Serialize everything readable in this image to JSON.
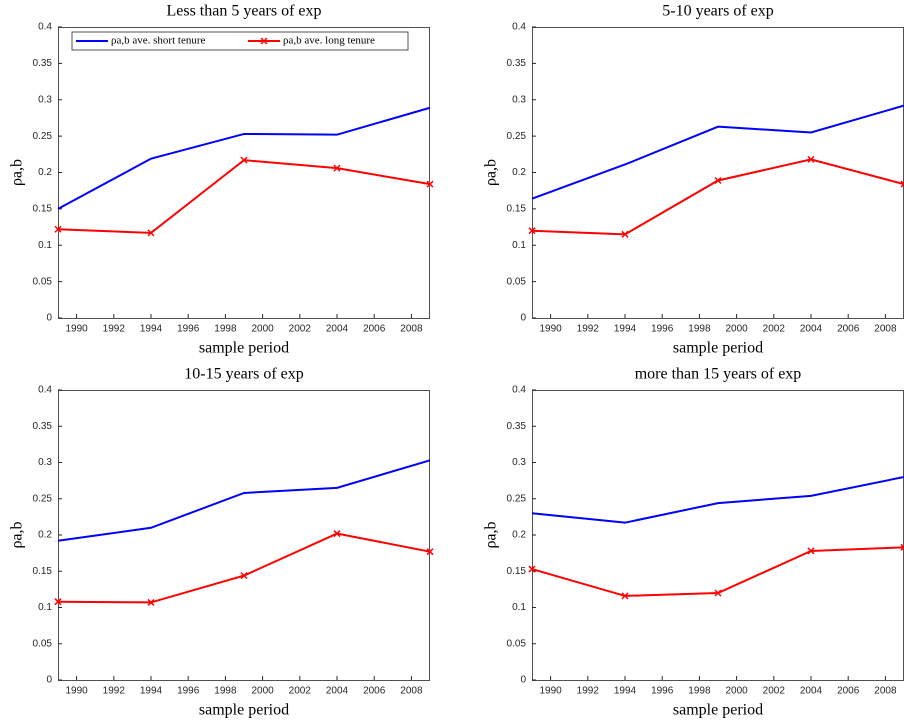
{
  "chart_data": [
    {
      "type": "line",
      "title": "Less than 5 years of exp",
      "xlabel": "sample period",
      "ylabel": "ρa,b",
      "x": [
        1989,
        1994,
        1999,
        2004,
        2009
      ],
      "xlim": [
        1989,
        2009
      ],
      "ylim": [
        0,
        0.4
      ],
      "xticks": [
        1990,
        1992,
        1994,
        1996,
        1998,
        2000,
        2002,
        2004,
        2006,
        2008
      ],
      "yticks": [
        0,
        0.05,
        0.1,
        0.15,
        0.2,
        0.25,
        0.3,
        0.35,
        0.4
      ],
      "legend": "top",
      "series": [
        {
          "name": "ρa,b ave. short tenure",
          "color": "#0000ff",
          "values": [
            0.15,
            0.219,
            0.253,
            0.252,
            0.289
          ]
        },
        {
          "name": "ρa,b ave. long tenure",
          "color": "#ff0000",
          "marker": "x",
          "values": [
            0.122,
            0.117,
            0.217,
            0.206,
            0.184
          ]
        }
      ]
    },
    {
      "type": "line",
      "title": "5-10 years of exp",
      "xlabel": "sample period",
      "ylabel": "ρa,b",
      "x": [
        1989,
        1994,
        1999,
        2004,
        2009
      ],
      "xlim": [
        1989,
        2009
      ],
      "ylim": [
        0,
        0.4
      ],
      "xticks": [
        1990,
        1992,
        1994,
        1996,
        1998,
        2000,
        2002,
        2004,
        2006,
        2008
      ],
      "yticks": [
        0,
        0.05,
        0.1,
        0.15,
        0.2,
        0.25,
        0.3,
        0.35,
        0.4
      ],
      "series": [
        {
          "color": "#0000ff",
          "values": [
            0.164,
            0.211,
            0.263,
            0.255,
            0.292
          ]
        },
        {
          "color": "#ff0000",
          "marker": "x",
          "values": [
            0.12,
            0.115,
            0.189,
            0.218,
            0.184
          ]
        }
      ]
    },
    {
      "type": "line",
      "title": "10-15 years of exp",
      "xlabel": "sample period",
      "ylabel": "ρa,b",
      "x": [
        1989,
        1994,
        1999,
        2004,
        2009
      ],
      "xlim": [
        1989,
        2009
      ],
      "ylim": [
        0,
        0.4
      ],
      "xticks": [
        1990,
        1992,
        1994,
        1996,
        1998,
        2000,
        2002,
        2004,
        2006,
        2008
      ],
      "yticks": [
        0,
        0.05,
        0.1,
        0.15,
        0.2,
        0.25,
        0.3,
        0.35,
        0.4
      ],
      "series": [
        {
          "color": "#0000ff",
          "values": [
            0.192,
            0.21,
            0.258,
            0.265,
            0.303
          ]
        },
        {
          "color": "#ff0000",
          "marker": "x",
          "values": [
            0.108,
            0.107,
            0.144,
            0.202,
            0.177
          ]
        }
      ]
    },
    {
      "type": "line",
      "title": "more than 15 years of exp",
      "xlabel": "sample period",
      "ylabel": "ρa,b",
      "x": [
        1989,
        1994,
        1999,
        2004,
        2009
      ],
      "xlim": [
        1989,
        2009
      ],
      "ylim": [
        0,
        0.4
      ],
      "xticks": [
        1990,
        1992,
        1994,
        1996,
        1998,
        2000,
        2002,
        2004,
        2006,
        2008
      ],
      "yticks": [
        0,
        0.05,
        0.1,
        0.15,
        0.2,
        0.25,
        0.3,
        0.35,
        0.4
      ],
      "series": [
        {
          "color": "#0000ff",
          "values": [
            0.23,
            0.217,
            0.244,
            0.254,
            0.28
          ]
        },
        {
          "color": "#ff0000",
          "marker": "x",
          "values": [
            0.153,
            0.116,
            0.12,
            0.178,
            0.183
          ]
        }
      ]
    }
  ]
}
